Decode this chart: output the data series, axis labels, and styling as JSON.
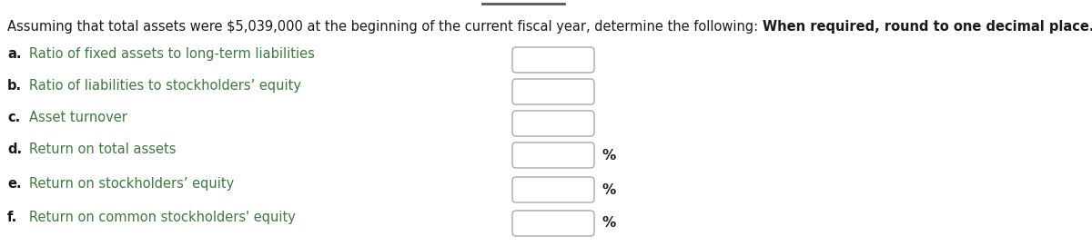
{
  "title_normal": "Assuming that total assets were $5,039,000 at the beginning of the current fiscal year, determine the following: ",
  "title_bold": "When required, round to one decimal place.",
  "items": [
    {
      "label": "a.",
      "text": "Ratio of fixed assets to long-term liabilities",
      "has_percent": false
    },
    {
      "label": "b.",
      "text": "Ratio of liabilities to stockholders’ equity",
      "has_percent": false
    },
    {
      "label": "c.",
      "text": "Asset turnover",
      "has_percent": false
    },
    {
      "label": "d.",
      "text": "Return on total assets",
      "has_percent": true
    },
    {
      "label": "e.",
      "text": "Return on stockholders’ equity",
      "has_percent": true
    },
    {
      "label": "f.",
      "text": "Return on common stockholders' equity",
      "has_percent": true
    }
  ],
  "text_color_green": "#3d7a3d",
  "text_color_black": "#1a1a1a",
  "background_color": "#ffffff",
  "label_fontsize": 10.5,
  "title_fontsize": 10.5,
  "percent_fontsize": 11,
  "top_line_color": "#555555",
  "box_edge_color": "#aaaaaa",
  "box_face_color": "#ffffff"
}
